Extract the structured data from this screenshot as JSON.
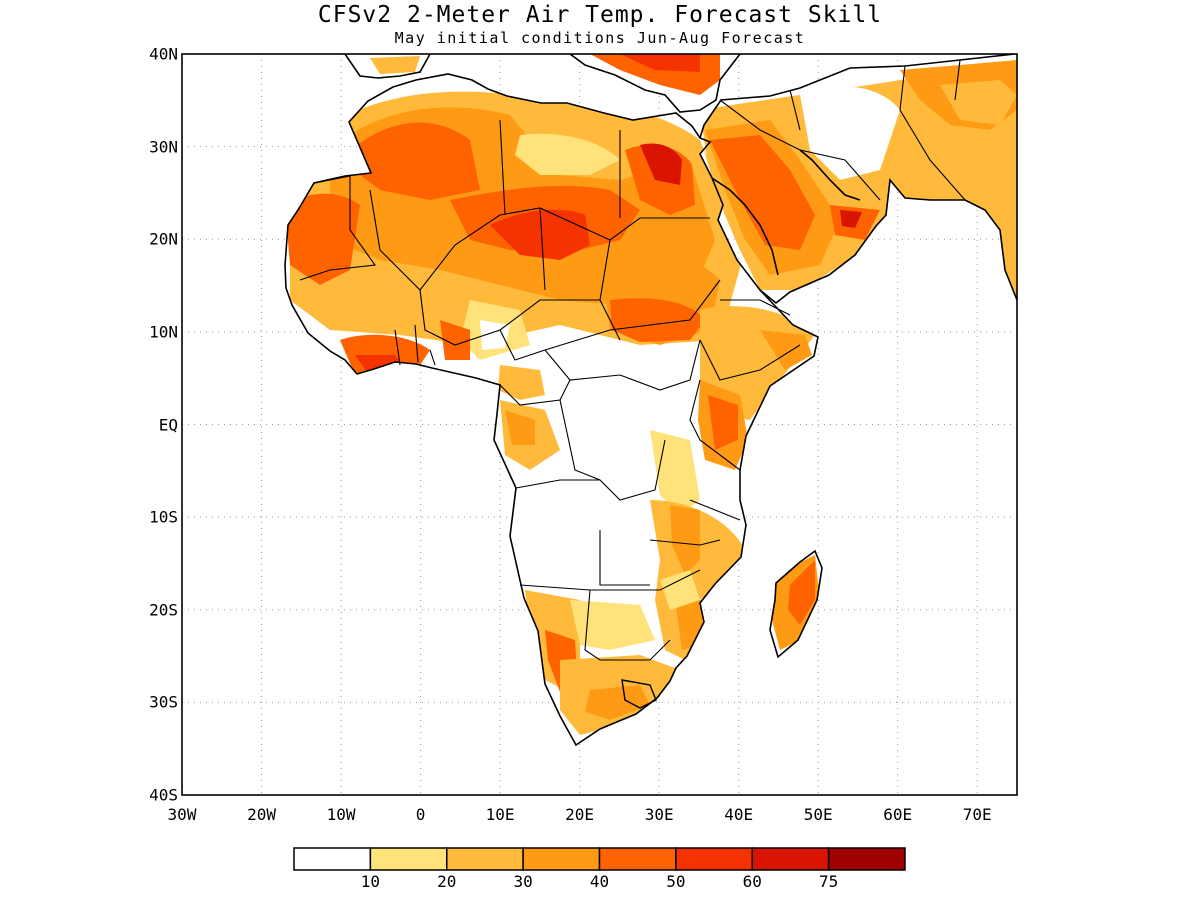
{
  "title": "CFSv2 2-Meter Air Temp. Forecast Skill",
  "subtitle": "May initial conditions  Jun-Aug Forecast",
  "map": {
    "region": "Africa",
    "lon_range": [
      -30,
      75
    ],
    "lat_range": [
      -40,
      40
    ],
    "grid": "dotted",
    "lat_labels": [
      "40N",
      "30N",
      "20N",
      "10N",
      "EQ",
      "10S",
      "20S",
      "30S",
      "40S"
    ],
    "lat_values": [
      40,
      30,
      20,
      10,
      0,
      -10,
      -20,
      -30,
      -40
    ],
    "lon_labels": [
      "30W",
      "20W",
      "10W",
      "0",
      "10E",
      "20E",
      "30E",
      "40E",
      "50E",
      "60E",
      "70E"
    ],
    "lon_values": [
      -30,
      -20,
      -10,
      0,
      10,
      20,
      30,
      40,
      50,
      60,
      70
    ]
  },
  "colorbar": {
    "bins": [
      {
        "color": "#ffffff"
      },
      {
        "color": "#ffe27a"
      },
      {
        "color": "#ffba3c"
      },
      {
        "color": "#ff9a14"
      },
      {
        "color": "#ff6300"
      },
      {
        "color": "#f53300"
      },
      {
        "color": "#d91400"
      },
      {
        "color": "#a00000"
      }
    ],
    "labels": [
      "10",
      "20",
      "30",
      "40",
      "50",
      "60",
      "75"
    ]
  }
}
